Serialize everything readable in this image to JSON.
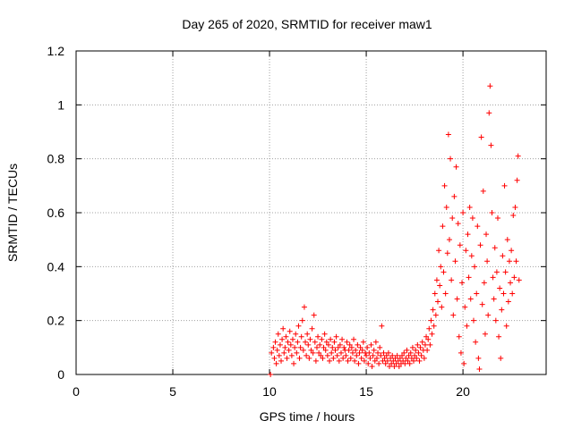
{
  "chart_data": {
    "type": "scatter",
    "title": "Day 265 of 2020, SRMTID for receiver maw1",
    "xlabel": "GPS time / hours",
    "ylabel": "SRMTID / TECUs",
    "xlim": [
      0,
      24.3
    ],
    "ylim": [
      0,
      1.2
    ],
    "x_ticks": [
      0,
      5,
      10,
      15,
      20
    ],
    "x_tick_labels": [
      "0",
      "5",
      "10",
      "15",
      "20"
    ],
    "y_ticks": [
      0,
      0.2,
      0.4,
      0.6,
      0.8,
      1.0,
      1.2
    ],
    "y_tick_labels": [
      "0",
      "0.2",
      "0.4",
      "0.6",
      "0.8",
      "1",
      "1.2"
    ],
    "grid": true,
    "marker": "+",
    "series": [
      {
        "name": "maw1",
        "color": "#ff0000",
        "points": [
          [
            10.05,
            0.0
          ],
          [
            10.1,
            0.08
          ],
          [
            10.2,
            0.1
          ],
          [
            10.25,
            0.06
          ],
          [
            10.3,
            0.12
          ],
          [
            10.35,
            0.04
          ],
          [
            10.4,
            0.09
          ],
          [
            10.45,
            0.15
          ],
          [
            10.5,
            0.07
          ],
          [
            10.55,
            0.11
          ],
          [
            10.6,
            0.05
          ],
          [
            10.65,
            0.13
          ],
          [
            10.7,
            0.17
          ],
          [
            10.75,
            0.08
          ],
          [
            10.8,
            0.1
          ],
          [
            10.85,
            0.14
          ],
          [
            10.9,
            0.06
          ],
          [
            10.95,
            0.12
          ],
          [
            11.0,
            0.09
          ],
          [
            11.05,
            0.16
          ],
          [
            11.1,
            0.11
          ],
          [
            11.15,
            0.07
          ],
          [
            11.2,
            0.13
          ],
          [
            11.25,
            0.04
          ],
          [
            11.3,
            0.1
          ],
          [
            11.35,
            0.15
          ],
          [
            11.4,
            0.08
          ],
          [
            11.45,
            0.12
          ],
          [
            11.5,
            0.18
          ],
          [
            11.55,
            0.06
          ],
          [
            11.6,
            0.1
          ],
          [
            11.65,
            0.14
          ],
          [
            11.7,
            0.2
          ],
          [
            11.75,
            0.09
          ],
          [
            11.8,
            0.25
          ],
          [
            11.85,
            0.12
          ],
          [
            11.9,
            0.07
          ],
          [
            11.95,
            0.15
          ],
          [
            12.0,
            0.11
          ],
          [
            12.05,
            0.06
          ],
          [
            12.1,
            0.13
          ],
          [
            12.15,
            0.09
          ],
          [
            12.2,
            0.17
          ],
          [
            12.25,
            0.08
          ],
          [
            12.3,
            0.22
          ],
          [
            12.35,
            0.12
          ],
          [
            12.4,
            0.05
          ],
          [
            12.45,
            0.1
          ],
          [
            12.5,
            0.14
          ],
          [
            12.55,
            0.08
          ],
          [
            12.6,
            0.11
          ],
          [
            12.65,
            0.07
          ],
          [
            12.7,
            0.13
          ],
          [
            12.75,
            0.06
          ],
          [
            12.8,
            0.1
          ],
          [
            12.85,
            0.15
          ],
          [
            12.9,
            0.09
          ],
          [
            12.95,
            0.12
          ],
          [
            13.0,
            0.07
          ],
          [
            13.05,
            0.11
          ],
          [
            13.1,
            0.05
          ],
          [
            13.15,
            0.13
          ],
          [
            13.2,
            0.08
          ],
          [
            13.25,
            0.1
          ],
          [
            13.3,
            0.06
          ],
          [
            13.35,
            0.12
          ],
          [
            13.4,
            0.09
          ],
          [
            13.45,
            0.14
          ],
          [
            13.5,
            0.07
          ],
          [
            13.55,
            0.1
          ],
          [
            13.6,
            0.05
          ],
          [
            13.65,
            0.11
          ],
          [
            13.7,
            0.08
          ],
          [
            13.75,
            0.13
          ],
          [
            13.8,
            0.06
          ],
          [
            13.85,
            0.1
          ],
          [
            13.9,
            0.09
          ],
          [
            13.95,
            0.07
          ],
          [
            14.0,
            0.12
          ],
          [
            14.05,
            0.05
          ],
          [
            14.1,
            0.09
          ],
          [
            14.15,
            0.11
          ],
          [
            14.2,
            0.06
          ],
          [
            14.25,
            0.1
          ],
          [
            14.3,
            0.08
          ],
          [
            14.35,
            0.13
          ],
          [
            14.4,
            0.05
          ],
          [
            14.45,
            0.09
          ],
          [
            14.5,
            0.07
          ],
          [
            14.55,
            0.11
          ],
          [
            14.6,
            0.04
          ],
          [
            14.65,
            0.08
          ],
          [
            14.7,
            0.1
          ],
          [
            14.75,
            0.06
          ],
          [
            14.8,
            0.09
          ],
          [
            14.85,
            0.12
          ],
          [
            14.9,
            0.05
          ],
          [
            14.95,
            0.08
          ],
          [
            15.0,
            0.07
          ],
          [
            15.05,
            0.1
          ],
          [
            15.1,
            0.04
          ],
          [
            15.15,
            0.08
          ],
          [
            15.2,
            0.06
          ],
          [
            15.25,
            0.11
          ],
          [
            15.3,
            0.03
          ],
          [
            15.35,
            0.07
          ],
          [
            15.4,
            0.09
          ],
          [
            15.45,
            0.05
          ],
          [
            15.5,
            0.12
          ],
          [
            15.55,
            0.06
          ],
          [
            15.6,
            0.08
          ],
          [
            15.65,
            0.04
          ],
          [
            15.7,
            0.1
          ],
          [
            15.75,
            0.07
          ],
          [
            15.8,
            0.18
          ],
          [
            15.85,
            0.05
          ],
          [
            15.9,
            0.08
          ],
          [
            15.95,
            0.06
          ],
          [
            16.0,
            0.04
          ],
          [
            16.05,
            0.07
          ],
          [
            16.1,
            0.05
          ],
          [
            16.15,
            0.08
          ],
          [
            16.2,
            0.03
          ],
          [
            16.25,
            0.06
          ],
          [
            16.3,
            0.04
          ],
          [
            16.35,
            0.07
          ],
          [
            16.4,
            0.05
          ],
          [
            16.45,
            0.03
          ],
          [
            16.5,
            0.06
          ],
          [
            16.55,
            0.04
          ],
          [
            16.6,
            0.07
          ],
          [
            16.65,
            0.05
          ],
          [
            16.7,
            0.03
          ],
          [
            16.75,
            0.06
          ],
          [
            16.8,
            0.04
          ],
          [
            16.85,
            0.07
          ],
          [
            16.9,
            0.05
          ],
          [
            16.95,
            0.08
          ],
          [
            17.0,
            0.04
          ],
          [
            17.05,
            0.06
          ],
          [
            17.1,
            0.09
          ],
          [
            17.15,
            0.05
          ],
          [
            17.2,
            0.07
          ],
          [
            17.25,
            0.04
          ],
          [
            17.3,
            0.08
          ],
          [
            17.35,
            0.06
          ],
          [
            17.4,
            0.1
          ],
          [
            17.45,
            0.05
          ],
          [
            17.5,
            0.07
          ],
          [
            17.55,
            0.09
          ],
          [
            17.6,
            0.06
          ],
          [
            17.65,
            0.11
          ],
          [
            17.7,
            0.08
          ],
          [
            17.75,
            0.05
          ],
          [
            17.8,
            0.1
          ],
          [
            17.85,
            0.07
          ],
          [
            17.9,
            0.12
          ],
          [
            17.95,
            0.09
          ],
          [
            18.0,
            0.06
          ],
          [
            18.05,
            0.11
          ],
          [
            18.1,
            0.14
          ],
          [
            18.15,
            0.09
          ],
          [
            18.2,
            0.13
          ],
          [
            18.25,
            0.17
          ],
          [
            18.3,
            0.11
          ],
          [
            18.35,
            0.2
          ],
          [
            18.4,
            0.15
          ],
          [
            18.45,
            0.24
          ],
          [
            18.5,
            0.18
          ],
          [
            18.55,
            0.3
          ],
          [
            18.6,
            0.22
          ],
          [
            18.65,
            0.35
          ],
          [
            18.7,
            0.27
          ],
          [
            18.75,
            0.46
          ],
          [
            18.8,
            0.33
          ],
          [
            18.85,
            0.4
          ],
          [
            18.9,
            0.25
          ],
          [
            18.95,
            0.55
          ],
          [
            19.0,
            0.38
          ],
          [
            19.05,
            0.7
          ],
          [
            19.1,
            0.3
          ],
          [
            19.15,
            0.62
          ],
          [
            19.2,
            0.45
          ],
          [
            19.25,
            0.89
          ],
          [
            19.3,
            0.5
          ],
          [
            19.35,
            0.8
          ],
          [
            19.4,
            0.35
          ],
          [
            19.45,
            0.58
          ],
          [
            19.5,
            0.22
          ],
          [
            19.55,
            0.66
          ],
          [
            19.6,
            0.42
          ],
          [
            19.65,
            0.77
          ],
          [
            19.7,
            0.28
          ],
          [
            19.75,
            0.56
          ],
          [
            19.8,
            0.14
          ],
          [
            19.85,
            0.48
          ],
          [
            19.9,
            0.08
          ],
          [
            19.95,
            0.34
          ],
          [
            20.0,
            0.6
          ],
          [
            20.05,
            0.04
          ],
          [
            20.1,
            0.25
          ],
          [
            20.15,
            0.46
          ],
          [
            20.2,
            0.18
          ],
          [
            20.25,
            0.52
          ],
          [
            20.3,
            0.36
          ],
          [
            20.35,
            0.62
          ],
          [
            20.4,
            0.28
          ],
          [
            20.45,
            0.44
          ],
          [
            20.5,
            0.58
          ],
          [
            20.55,
            0.2
          ],
          [
            20.6,
            0.4
          ],
          [
            20.65,
            0.12
          ],
          [
            20.7,
            0.3
          ],
          [
            20.75,
            0.55
          ],
          [
            20.8,
            0.06
          ],
          [
            20.85,
            0.02
          ],
          [
            20.9,
            0.48
          ],
          [
            20.95,
            0.88
          ],
          [
            21.0,
            0.26
          ],
          [
            21.05,
            0.68
          ],
          [
            21.1,
            0.34
          ],
          [
            21.15,
            0.15
          ],
          [
            21.2,
            0.52
          ],
          [
            21.25,
            0.42
          ],
          [
            21.3,
            0.22
          ],
          [
            21.35,
            0.97
          ],
          [
            21.4,
            1.07
          ],
          [
            21.45,
            0.85
          ],
          [
            21.5,
            0.6
          ],
          [
            21.55,
            0.36
          ],
          [
            21.6,
            0.28
          ],
          [
            21.65,
            0.47
          ],
          [
            21.7,
            0.2
          ],
          [
            21.75,
            0.38
          ],
          [
            21.8,
            0.58
          ],
          [
            21.85,
            0.14
          ],
          [
            21.9,
            0.32
          ],
          [
            21.95,
            0.06
          ],
          [
            22.0,
            0.24
          ],
          [
            22.05,
            0.44
          ],
          [
            22.1,
            0.3
          ],
          [
            22.15,
            0.7
          ],
          [
            22.2,
            0.38
          ],
          [
            22.25,
            0.18
          ],
          [
            22.3,
            0.5
          ],
          [
            22.35,
            0.27
          ],
          [
            22.4,
            0.42
          ],
          [
            22.45,
            0.34
          ],
          [
            22.5,
            0.46
          ],
          [
            22.55,
            0.3
          ],
          [
            22.6,
            0.59
          ],
          [
            22.65,
            0.36
          ],
          [
            22.7,
            0.62
          ],
          [
            22.75,
            0.42
          ],
          [
            22.8,
            0.72
          ],
          [
            22.85,
            0.81
          ],
          [
            22.9,
            0.35
          ]
        ]
      }
    ]
  }
}
